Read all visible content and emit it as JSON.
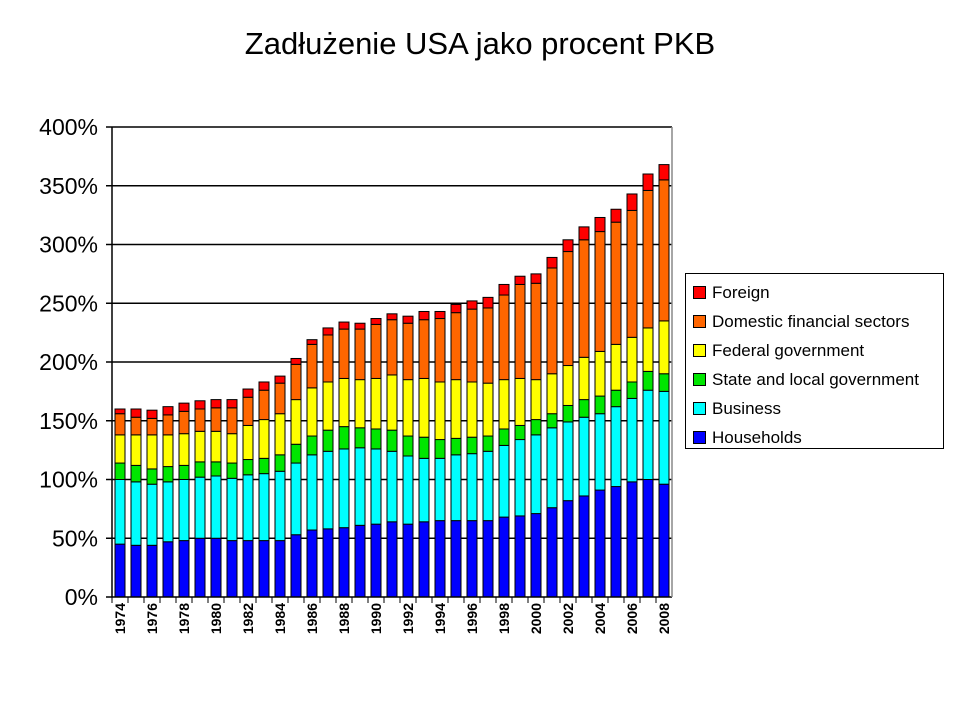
{
  "chart_data": {
    "type": "bar",
    "stacked": true,
    "title": "Zadłużenie USA jako procent PKB",
    "xlabel": "",
    "ylabel": "",
    "ylim": [
      0,
      400
    ],
    "yticks": [
      "0%",
      "50%",
      "100%",
      "150%",
      "200%",
      "250%",
      "300%",
      "350%",
      "400%"
    ],
    "ytick_values": [
      0,
      50,
      100,
      150,
      200,
      250,
      300,
      350,
      400
    ],
    "grid": true,
    "legend_position": "right",
    "categories": [
      "1974",
      "1975",
      "1976",
      "1977",
      "1978",
      "1979",
      "1980",
      "1981",
      "1982",
      "1983",
      "1984",
      "1985",
      "1986",
      "1987",
      "1988",
      "1989",
      "1990",
      "1991",
      "1992",
      "1993",
      "1994",
      "1995",
      "1996",
      "1997",
      "1998",
      "1999",
      "2000",
      "2001",
      "2002",
      "2003",
      "2004",
      "2005",
      "2006",
      "2007",
      "2008"
    ],
    "xtick_labels": [
      "1974",
      "1976",
      "1978",
      "1980",
      "1982",
      "1984",
      "1986",
      "1988",
      "1990",
      "1992",
      "1994",
      "1996",
      "1998",
      "2000",
      "2002",
      "2004",
      "2006",
      "2008"
    ],
    "series": [
      {
        "name": "Households",
        "color": "#0000ff",
        "values": [
          45,
          44,
          44,
          47,
          48,
          50,
          50,
          48,
          48,
          48,
          48,
          53,
          57,
          58,
          59,
          61,
          62,
          64,
          62,
          64,
          65,
          65,
          65,
          65,
          68,
          69,
          71,
          76,
          82,
          86,
          91,
          94,
          98,
          100,
          96
        ]
      },
      {
        "name": "Business",
        "color": "#00ffff",
        "values": [
          55,
          54,
          52,
          51,
          52,
          52,
          53,
          53,
          56,
          57,
          59,
          61,
          64,
          66,
          67,
          66,
          64,
          60,
          58,
          54,
          53,
          56,
          57,
          59,
          61,
          65,
          67,
          68,
          67,
          67,
          65,
          68,
          71,
          76,
          79
        ]
      },
      {
        "name": "State and local government",
        "color": "#00e600",
        "values": [
          14,
          14,
          13,
          13,
          12,
          13,
          12,
          13,
          13,
          13,
          14,
          16,
          16,
          18,
          19,
          17,
          17,
          18,
          17,
          18,
          16,
          14,
          14,
          13,
          14,
          12,
          13,
          12,
          14,
          15,
          15,
          14,
          14,
          16,
          15
        ]
      },
      {
        "name": "Federal government",
        "color": "#ffff00",
        "values": [
          24,
          26,
          29,
          27,
          27,
          26,
          26,
          25,
          29,
          33,
          35,
          38,
          41,
          41,
          41,
          41,
          43,
          47,
          48,
          50,
          49,
          50,
          47,
          45,
          42,
          40,
          34,
          34,
          34,
          36,
          38,
          39,
          38,
          37,
          45
        ]
      },
      {
        "name": "Domestic financial sectors",
        "color": "#ff6600",
        "values": [
          18,
          15,
          14,
          17,
          19,
          19,
          20,
          22,
          24,
          25,
          26,
          30,
          37,
          40,
          42,
          43,
          46,
          47,
          48,
          50,
          54,
          57,
          62,
          64,
          72,
          80,
          82,
          90,
          97,
          100,
          102,
          104,
          108,
          117,
          120
        ]
      },
      {
        "name": "Foreign",
        "color": "#ff0000",
        "values": [
          4,
          7,
          7,
          7,
          7,
          7,
          7,
          7,
          7,
          7,
          6,
          5,
          4,
          6,
          6,
          5,
          5,
          5,
          6,
          7,
          6,
          7,
          7,
          9,
          9,
          7,
          8,
          9,
          10,
          11,
          12,
          11,
          14,
          14,
          13
        ]
      }
    ]
  }
}
